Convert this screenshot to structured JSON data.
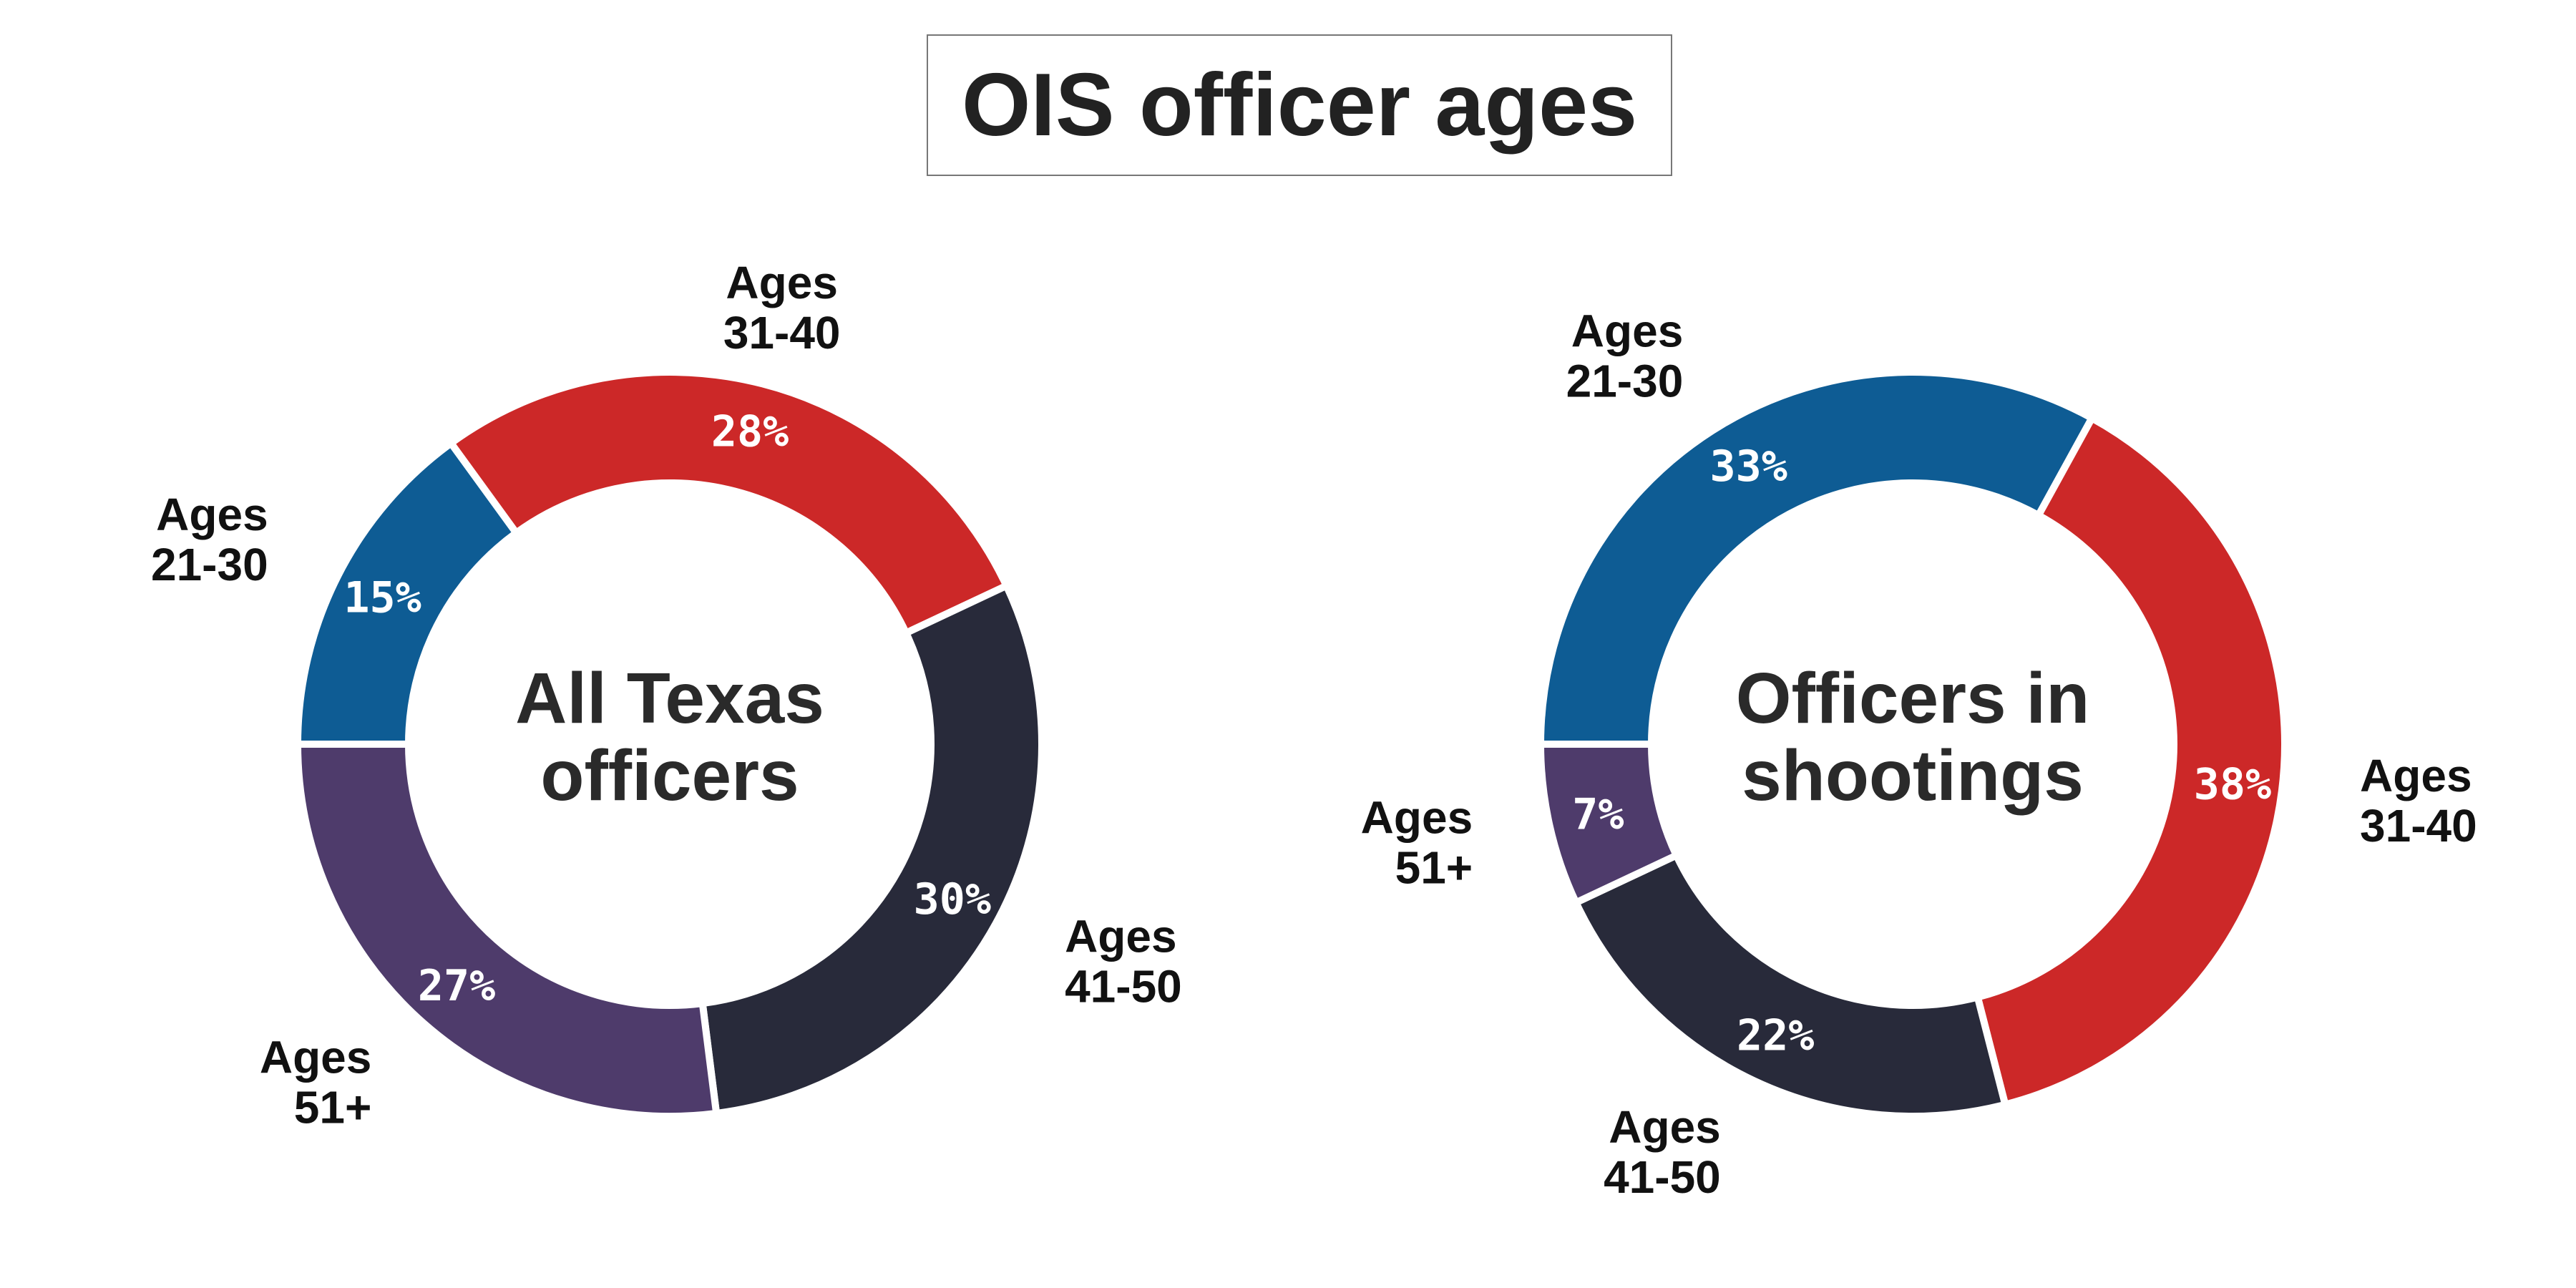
{
  "title": "OIS officer ages",
  "colors": {
    "Ages 21-30": "#0e5c94",
    "Ages 31-40": "#cc2828",
    "Ages 41-50": "#282a3a",
    "Ages 51+": "#4e3b6b"
  },
  "chart_data": [
    {
      "type": "pie",
      "title": "All Texas officers",
      "center_lines": [
        "All Texas",
        "officers"
      ],
      "slices": [
        {
          "category": "Ages 21-30",
          "label_lines": [
            "Ages",
            "21-30"
          ],
          "value": 15,
          "pct_text": "15%"
        },
        {
          "category": "Ages 31-40",
          "label_lines": [
            "Ages",
            "31-40"
          ],
          "value": 28,
          "pct_text": "28%"
        },
        {
          "category": "Ages 41-50",
          "label_lines": [
            "Ages",
            "41-50"
          ],
          "value": 30,
          "pct_text": "30%"
        },
        {
          "category": "Ages 51+",
          "label_lines": [
            "Ages",
            "51+"
          ],
          "value": 27,
          "pct_text": "27%"
        }
      ]
    },
    {
      "type": "pie",
      "title": "Officers in shootings",
      "center_lines": [
        "Officers in",
        "shootings"
      ],
      "slices": [
        {
          "category": "Ages 21-30",
          "label_lines": [
            "Ages",
            "21-30"
          ],
          "value": 33,
          "pct_text": "33%"
        },
        {
          "category": "Ages 31-40",
          "label_lines": [
            "Ages",
            "31-40"
          ],
          "value": 38,
          "pct_text": "38%"
        },
        {
          "category": "Ages 41-50",
          "label_lines": [
            "Ages",
            "41-50"
          ],
          "value": 22,
          "pct_text": "22%"
        },
        {
          "category": "Ages 51+",
          "label_lines": [
            "Ages",
            "51+"
          ],
          "value": 7,
          "pct_text": "7%"
        }
      ]
    }
  ]
}
